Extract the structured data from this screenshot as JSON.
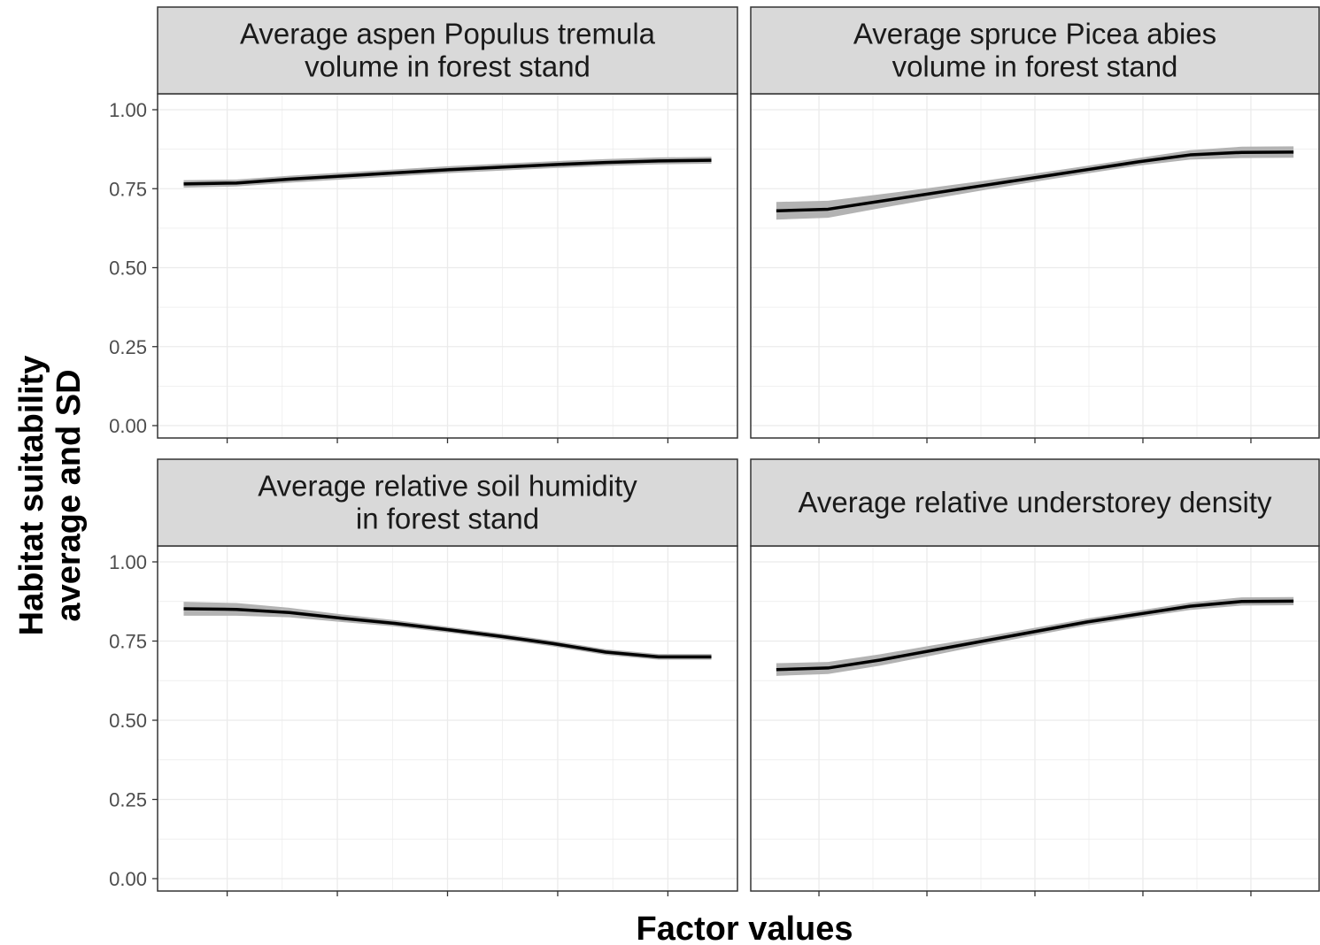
{
  "chart_data": {
    "type": "line",
    "xlabel": "Factor values",
    "ylabel": [
      "Habitat suitability",
      "average and SD"
    ],
    "ylim": [
      0,
      1
    ],
    "y_ticks": [
      "0.00",
      "0.25",
      "0.50",
      "0.75",
      "1.00"
    ],
    "x_tick_labels": [],
    "grid": true,
    "colors": {
      "line": "#000000",
      "ribbon": "#b3b3b3",
      "strip": "#d9d9d9",
      "grid": "#ebebeb",
      "border": "#333333"
    },
    "panels": [
      {
        "title": [
          "Average aspen Populus tremula",
          "volume in forest stand"
        ],
        "x": [
          0.0,
          0.1,
          0.2,
          0.3,
          0.4,
          0.5,
          0.6,
          0.7,
          0.8,
          0.9,
          1.0
        ],
        "y": [
          0.765,
          0.768,
          0.78,
          0.79,
          0.8,
          0.81,
          0.818,
          0.826,
          0.833,
          0.838,
          0.84
        ],
        "sd": [
          0.012,
          0.011,
          0.011,
          0.011,
          0.011,
          0.011,
          0.011,
          0.011,
          0.011,
          0.011,
          0.011
        ]
      },
      {
        "title": [
          "Average spruce Picea abies",
          "volume in forest stand"
        ],
        "x": [
          0.0,
          0.1,
          0.2,
          0.3,
          0.4,
          0.5,
          0.6,
          0.7,
          0.8,
          0.9,
          1.0
        ],
        "y": [
          0.68,
          0.685,
          0.71,
          0.735,
          0.76,
          0.785,
          0.81,
          0.835,
          0.857,
          0.865,
          0.866
        ],
        "sd": [
          0.028,
          0.027,
          0.022,
          0.018,
          0.015,
          0.013,
          0.012,
          0.012,
          0.015,
          0.018,
          0.018
        ]
      },
      {
        "title": [
          "Average relative soil humidity",
          "in forest stand"
        ],
        "x": [
          0.0,
          0.1,
          0.2,
          0.3,
          0.4,
          0.5,
          0.6,
          0.7,
          0.8,
          0.9,
          1.0
        ],
        "y": [
          0.852,
          0.85,
          0.84,
          0.822,
          0.806,
          0.786,
          0.765,
          0.742,
          0.715,
          0.7,
          0.7
        ],
        "sd": [
          0.022,
          0.02,
          0.015,
          0.012,
          0.01,
          0.009,
          0.009,
          0.009,
          0.009,
          0.009,
          0.009
        ]
      },
      {
        "title": [
          "Average relative understorey density"
        ],
        "x": [
          0.0,
          0.1,
          0.2,
          0.3,
          0.4,
          0.5,
          0.6,
          0.7,
          0.8,
          0.9,
          1.0
        ],
        "y": [
          0.66,
          0.665,
          0.69,
          0.72,
          0.75,
          0.78,
          0.81,
          0.835,
          0.86,
          0.875,
          0.876
        ],
        "sd": [
          0.02,
          0.019,
          0.018,
          0.016,
          0.013,
          0.012,
          0.011,
          0.011,
          0.012,
          0.013,
          0.013
        ]
      }
    ]
  }
}
